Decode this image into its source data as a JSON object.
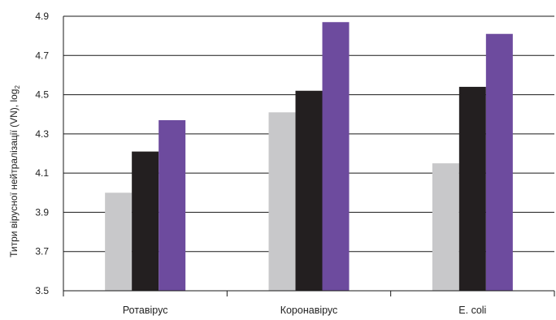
{
  "chart_data": {
    "type": "bar",
    "categories": [
      "Ротавірус",
      "Коронавірус",
      "E. coli"
    ],
    "series": [
      {
        "color": "#c8c8ca",
        "values": [
          4.0,
          4.41,
          4.15
        ]
      },
      {
        "color": "#231f20",
        "values": [
          4.21,
          4.52,
          4.54
        ]
      },
      {
        "color": "#6d4b9e",
        "values": [
          4.37,
          4.87,
          4.81
        ]
      }
    ],
    "ylabel": "Титри вірусної нейтралізації (VN), log",
    "ylabel_subscript": "2",
    "ylim": [
      3.5,
      4.9
    ],
    "yticks": [
      "3.5",
      "3.7",
      "3.9",
      "4.1",
      "4.3",
      "4.5",
      "4.7",
      "4.9"
    ],
    "grid": true,
    "legend": "none"
  }
}
